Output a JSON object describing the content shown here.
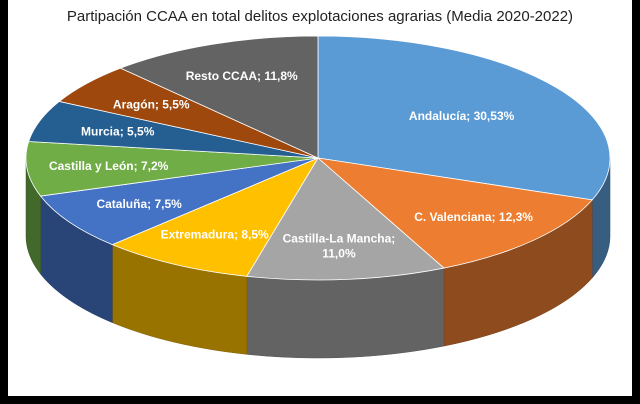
{
  "chart_data": {
    "type": "pie",
    "style": "3d",
    "title": "Partipación CCAA en total delitos explotaciones agrarias (Media 2020-2022)",
    "slices": [
      {
        "label": "Andalucía; 30,53%",
        "value": 30.53,
        "color": "#5b9bd5"
      },
      {
        "label": "C. Valenciana; 12,3%",
        "value": 12.3,
        "color": "#ed7d31"
      },
      {
        "label": "Castilla-La Mancha;|11,0%",
        "value": 11.0,
        "color": "#a5a5a5"
      },
      {
        "label": "Extremadura; 8,5%",
        "value": 8.5,
        "color": "#ffc000"
      },
      {
        "label": "Cataluña; 7,5%",
        "value": 7.5,
        "color": "#4472c4"
      },
      {
        "label": "Castilla y León; 7,2%",
        "value": 7.2,
        "color": "#70ad47"
      },
      {
        "label": "Murcia; 5,5%",
        "value": 5.5,
        "color": "#255e91"
      },
      {
        "label": "Aragón; 5,5%",
        "value": 5.5,
        "color": "#9e480e"
      },
      {
        "label": "Resto CCAA; 11,8%",
        "value": 11.8,
        "color": "#636363"
      }
    ]
  }
}
